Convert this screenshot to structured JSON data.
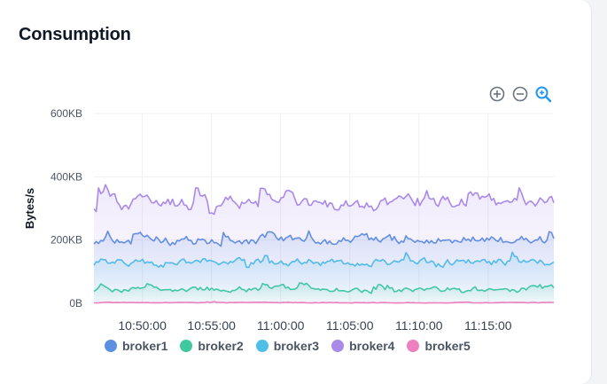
{
  "card": {
    "title": "Consumption"
  },
  "toolbar": {
    "icons": [
      "zoom-in-icon",
      "zoom-out-icon",
      "zoom-reset-icon"
    ]
  },
  "colors": {
    "broker1": "#5b8fe0",
    "broker2": "#3ec9a0",
    "broker3": "#4dbfe8",
    "broker4": "#a98ae8",
    "broker5": "#ee7fc0",
    "accent": "#2196f3",
    "icon": "#6b7280"
  },
  "chart_data": {
    "type": "area",
    "title": "",
    "xlabel": "",
    "ylabel": "Bytes/s",
    "y_ticks": [
      "0B",
      "200KB",
      "400KB",
      "600KB"
    ],
    "y_tick_values": [
      0,
      200,
      400,
      600
    ],
    "ylim": [
      0,
      600
    ],
    "y_unit": "KB",
    "x_ticks": [
      "10:50:00",
      "10:55:00",
      "11:00:00",
      "11:05:00",
      "11:10:00",
      "11:15:00"
    ],
    "x_range": [
      "10:46:30",
      "11:19:45"
    ],
    "grid": true,
    "legend_position": "bottom",
    "series": [
      {
        "name": "broker1",
        "avg": 200,
        "range": [
          150,
          235
        ]
      },
      {
        "name": "broker2",
        "avg": 45,
        "range": [
          25,
          75
        ]
      },
      {
        "name": "broker3",
        "avg": 130,
        "range": [
          95,
          165
        ]
      },
      {
        "name": "broker4",
        "avg": 315,
        "range": [
          255,
          375
        ]
      },
      {
        "name": "broker5",
        "avg": 2,
        "range": [
          0,
          5
        ]
      }
    ]
  }
}
